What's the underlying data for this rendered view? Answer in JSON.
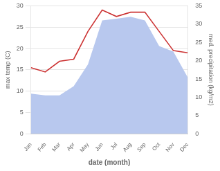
{
  "chart_data": {
    "type": "line",
    "categories": [
      "Jan",
      "Feb",
      "Mar",
      "Apr",
      "May",
      "Jun",
      "Jul",
      "Aug",
      "Sep",
      "Oct",
      "Nov",
      "Dec"
    ],
    "xlabel": "date (month)",
    "ylabel": "max temp (C)",
    "y2label": "med. precipitation (kg/m2)",
    "series": [
      {
        "type": "area",
        "color": "#b8c8ee",
        "axis": "y2",
        "values": [
          11.0,
          10.5,
          10.5,
          13.0,
          19.0,
          31.0,
          31.5,
          32.0,
          31.0,
          24.0,
          22.5,
          15.5
        ]
      },
      {
        "type": "line",
        "color": "#cc3333",
        "values": [
          15.5,
          14.5,
          17.0,
          17.5,
          24.0,
          29.0,
          27.5,
          28.5,
          28.5,
          24.0,
          19.5,
          19.0
        ]
      }
    ],
    "ylim": [
      0,
      30
    ],
    "yticks": [
      0,
      5,
      10,
      15,
      20,
      25,
      30
    ],
    "y2lim": [
      0,
      35
    ],
    "y2ticks": [
      0,
      5,
      10,
      15,
      20,
      25,
      30,
      35
    ],
    "grid": true
  }
}
